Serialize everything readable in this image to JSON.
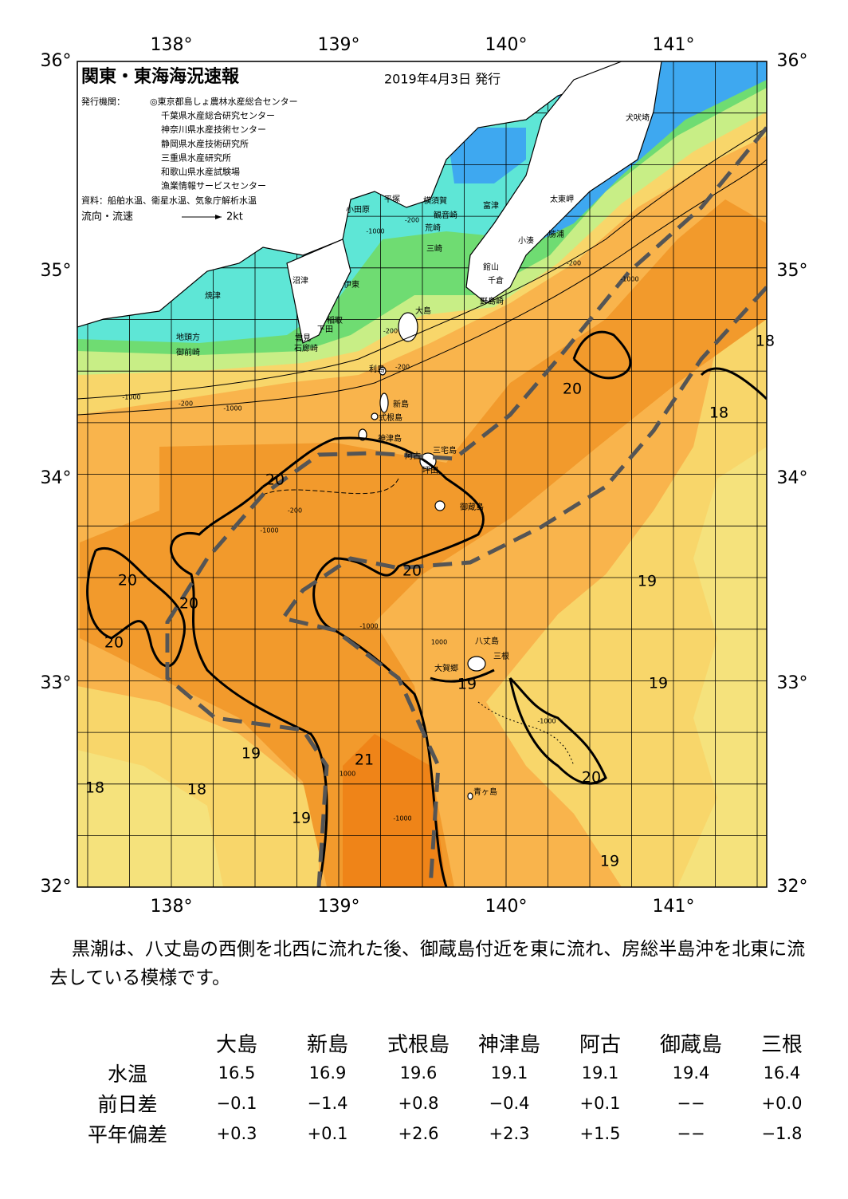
{
  "header": {
    "title": "関東・東海海況速報",
    "date": "2019年4月3日 発行",
    "issuer_label": "発行機関：",
    "issuers": [
      "◎東京都島しょ農林水産総合センター",
      "千葉県水産総合研究センター",
      "神奈川県水産技術センター",
      "静岡県水産技術研究所",
      "三重県水産研究所",
      "和歌山県水産試験場",
      "漁業情報サービスセンター"
    ],
    "sources": "資料：船舶水温、衛星水温、気象庁解析水温",
    "legend_label": "流向・流速",
    "legend_scale": "2kt"
  },
  "map": {
    "lon_labels": [
      "138°",
      "139°",
      "140°",
      "141°"
    ],
    "lat_labels": [
      "36°",
      "35°",
      "34°",
      "33°",
      "32°"
    ],
    "place_names": [
      "犬吠埼",
      "太東岬",
      "勝浦",
      "小湊",
      "館山",
      "千倉",
      "野島崎",
      "富津",
      "観音崎",
      "荒崎",
      "三崎",
      "横須賀",
      "平塚",
      "小田原",
      "沼津",
      "伊東",
      "焼津",
      "稲取",
      "下田",
      "雲見",
      "石廊崎",
      "地頭方",
      "御前崎",
      "大島",
      "利島",
      "新島",
      "式根島",
      "神津島",
      "三宅島",
      "阿古",
      "坪田",
      "御蔵島",
      "八丈島",
      "三根",
      "大賀郷",
      "青ヶ島"
    ],
    "isotherm_labels": [
      "20",
      "20",
      "20",
      "20",
      "20",
      "20",
      "20",
      "18",
      "19",
      "19",
      "19",
      "19",
      "19",
      "19",
      "18",
      "18",
      "21",
      "18"
    ],
    "depth_labels": [
      "-200",
      "-1000",
      "-200",
      "-1000",
      "-1000",
      "-200",
      "-1000",
      "-200",
      "-1000",
      "1000",
      "-1000",
      "-1000",
      "1000",
      "-1000",
      "-200",
      "-200"
    ]
  },
  "summary": "黒潮は、八丈島の西側を北西に流れた後、御蔵島付近を東に流れ、房総半島沖を北東に流去している模様です。",
  "table": {
    "columns": [
      "大島",
      "新島",
      "式根島",
      "神津島",
      "阿古",
      "御蔵島",
      "三根"
    ],
    "rows": [
      {
        "label": "水温",
        "cells": [
          "16.5",
          "16.9",
          "19.6",
          "19.1",
          "19.1",
          "19.4",
          "16.4"
        ]
      },
      {
        "label": "前日差",
        "cells": [
          "−0.1",
          "−1.4",
          "+0.8",
          "−0.4",
          "+0.1",
          "−−",
          "+0.0"
        ]
      },
      {
        "label": "平年偏差",
        "cells": [
          "+0.3",
          "+0.1",
          "+2.6",
          "+2.3",
          "+1.5",
          "−−",
          "−1.8"
        ]
      }
    ]
  }
}
